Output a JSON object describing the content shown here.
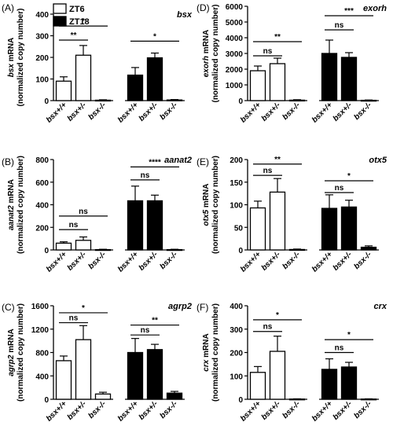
{
  "legend": {
    "entries": [
      {
        "label": "ZT6",
        "color": "#ffffff"
      },
      {
        "label": "ZT18",
        "color": "#000000"
      }
    ]
  },
  "chart_data": [
    {
      "type": "bar",
      "panel": "(A)",
      "gene": "bsx",
      "ylabel_lines": [
        "bsx mRNA",
        "(normalized copy number)"
      ],
      "ylim": [
        0,
        400
      ],
      "yticks": [
        "0",
        "100",
        "200",
        "300",
        "400"
      ],
      "categories": [
        "bsx+/+",
        "bsx+/-",
        "bsx-/-"
      ],
      "series": [
        {
          "name": "ZT6",
          "values": [
            90,
            210,
            2
          ],
          "errors": [
            20,
            45,
            2
          ]
        },
        {
          "name": "ZT18",
          "values": [
            118,
            198,
            3
          ],
          "errors": [
            35,
            22,
            2
          ]
        }
      ],
      "significance": [
        {
          "group": 0,
          "from": 0,
          "to": 1,
          "text": "**",
          "y": 280
        },
        {
          "group": 0,
          "from": 0,
          "to": 2,
          "text": "*",
          "y": 345
        },
        {
          "group": 1,
          "from": 0,
          "to": 2,
          "text": "*",
          "y": 275
        }
      ]
    },
    {
      "type": "bar",
      "panel": "(B)",
      "gene": "aanat2",
      "ylabel_lines": [
        "aanat2 mRNA",
        "(normalized copy number)"
      ],
      "ylim": [
        0,
        800
      ],
      "yticks": [
        "0",
        "200",
        "400",
        "600",
        "800"
      ],
      "categories": [
        "bsx+/+",
        "bsx+/-",
        "bsx-/-"
      ],
      "series": [
        {
          "name": "ZT6",
          "values": [
            60,
            85,
            3
          ],
          "errors": [
            12,
            30,
            3
          ]
        },
        {
          "name": "ZT18",
          "values": [
            435,
            435,
            3
          ],
          "errors": [
            130,
            50,
            3
          ]
        }
      ],
      "significance": [
        {
          "group": 0,
          "from": 0,
          "to": 1,
          "text": "ns",
          "y": 180
        },
        {
          "group": 0,
          "from": 0,
          "to": 2,
          "text": "ns",
          "y": 300
        },
        {
          "group": 1,
          "from": 0,
          "to": 1,
          "text": "ns",
          "y": 620
        },
        {
          "group": 1,
          "from": 0,
          "to": 2,
          "text": "****",
          "y": 735
        }
      ]
    },
    {
      "type": "bar",
      "panel": "(C)",
      "gene": "agrp2",
      "ylabel_lines": [
        "agrp2 mRNA",
        "(normalized copy number)"
      ],
      "ylim": [
        0,
        1600
      ],
      "yticks": [
        "0",
        "400",
        "800",
        "1200",
        "1600"
      ],
      "categories": [
        "bsx+/+",
        "bsx+/-",
        "bsx-/-"
      ],
      "series": [
        {
          "name": "ZT6",
          "values": [
            660,
            1020,
            90
          ],
          "errors": [
            80,
            240,
            30
          ]
        },
        {
          "name": "ZT18",
          "values": [
            800,
            850,
            105
          ],
          "errors": [
            240,
            90,
            30
          ]
        }
      ],
      "significance": [
        {
          "group": 0,
          "from": 0,
          "to": 1,
          "text": "ns",
          "y": 1310
        },
        {
          "group": 0,
          "from": 0,
          "to": 2,
          "text": "*",
          "y": 1480
        },
        {
          "group": 1,
          "from": 0,
          "to": 1,
          "text": "ns",
          "y": 1100
        },
        {
          "group": 1,
          "from": 0,
          "to": 2,
          "text": "**",
          "y": 1270
        }
      ]
    },
    {
      "type": "bar",
      "panel": "(D)",
      "gene": "exorh",
      "ylabel_lines": [
        "exorh mRNA",
        "(normalized copy number)"
      ],
      "ylim": [
        0,
        6000
      ],
      "yticks": [
        "0",
        "1000",
        "2000",
        "3000",
        "4000",
        "5000",
        "6000"
      ],
      "categories": [
        "bsx+/+",
        "bsx+/-",
        "bsx-/-"
      ],
      "series": [
        {
          "name": "ZT6",
          "values": [
            1900,
            2350,
            30
          ],
          "errors": [
            300,
            350,
            30
          ]
        },
        {
          "name": "ZT18",
          "values": [
            3000,
            2750,
            20
          ],
          "errors": [
            850,
            300,
            20
          ]
        }
      ],
      "significance": [
        {
          "group": 0,
          "from": 0,
          "to": 1,
          "text": "ns",
          "y": 2850
        },
        {
          "group": 0,
          "from": 0,
          "to": 2,
          "text": "**",
          "y": 3750
        },
        {
          "group": 1,
          "from": 0,
          "to": 1,
          "text": "ns",
          "y": 4500
        },
        {
          "group": 1,
          "from": 0,
          "to": 2,
          "text": "***",
          "y": 5400
        }
      ]
    },
    {
      "type": "bar",
      "panel": "(E)",
      "gene": "otx5",
      "ylabel_lines": [
        "otx5 mRNA",
        "(normalized copy number)"
      ],
      "ylim": [
        0,
        200
      ],
      "yticks": [
        "0",
        "50",
        "100",
        "150",
        "200"
      ],
      "categories": [
        "bsx+/+",
        "bsx+/-",
        "bsx-/-"
      ],
      "series": [
        {
          "name": "ZT6",
          "values": [
            93,
            128,
            1
          ],
          "errors": [
            15,
            30,
            1
          ]
        },
        {
          "name": "ZT18",
          "values": [
            92,
            95,
            6
          ],
          "errors": [
            30,
            15,
            3
          ]
        }
      ],
      "significance": [
        {
          "group": 0,
          "from": 0,
          "to": 1,
          "text": "ns",
          "y": 165
        },
        {
          "group": 0,
          "from": 0,
          "to": 2,
          "text": "**",
          "y": 190
        },
        {
          "group": 1,
          "from": 0,
          "to": 1,
          "text": "ns",
          "y": 127
        },
        {
          "group": 1,
          "from": 0,
          "to": 2,
          "text": "*",
          "y": 153
        }
      ]
    },
    {
      "type": "bar",
      "panel": "(F)",
      "gene": "crx",
      "ylabel_lines": [
        "crx mRNA",
        "(normalized copy number)"
      ],
      "ylim": [
        0,
        400
      ],
      "yticks": [
        "0",
        "100",
        "200",
        "300",
        "400"
      ],
      "categories": [
        "bsx+/+",
        "bsx+/-",
        "bsx-/-"
      ],
      "series": [
        {
          "name": "ZT6",
          "values": [
            115,
            205,
            1
          ],
          "errors": [
            25,
            65,
            1
          ]
        },
        {
          "name": "ZT18",
          "values": [
            128,
            138,
            1
          ],
          "errors": [
            45,
            20,
            1
          ]
        }
      ],
      "significance": [
        {
          "group": 0,
          "from": 0,
          "to": 1,
          "text": "ns",
          "y": 290
        },
        {
          "group": 0,
          "from": 0,
          "to": 2,
          "text": "*",
          "y": 340
        },
        {
          "group": 1,
          "from": 0,
          "to": 1,
          "text": "ns",
          "y": 200
        },
        {
          "group": 1,
          "from": 0,
          "to": 2,
          "text": "*",
          "y": 255
        }
      ]
    }
  ]
}
